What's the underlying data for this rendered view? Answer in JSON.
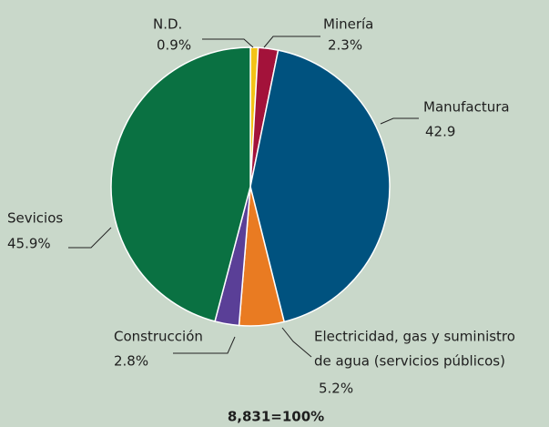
{
  "chart_data": {
    "type": "pie",
    "categories": [
      "N.D.",
      "Minería",
      "Manufactura",
      [
        "Electricidad, gas y suministro",
        "de agua (servicios públicos)"
      ],
      "Construcción",
      "Sevicios"
    ],
    "values": [
      0.9,
      2.3,
      42.9,
      5.2,
      2.8,
      45.9
    ],
    "value_labels": [
      "0.9%",
      "2.3%",
      "42.9",
      "5.2%",
      "2.8%",
      "45.9%"
    ],
    "colors": [
      "#f3c317",
      "#a3123a",
      "#00527f",
      "#e97b22",
      "#5a3f97",
      "#0a7142"
    ],
    "annotation": "8,831=100%"
  }
}
